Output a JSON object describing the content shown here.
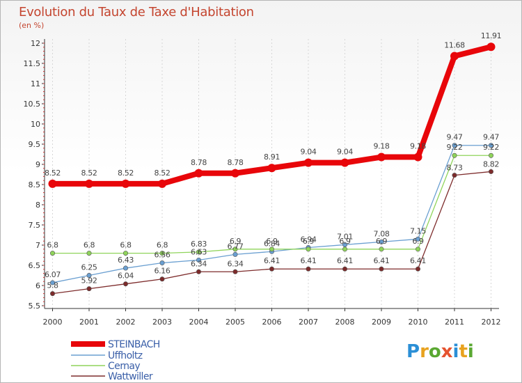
{
  "header": {
    "title": "Evolution du Taux de Taxe d'Habitation",
    "unit": "(en %)"
  },
  "logo": {
    "text": "Proxiti",
    "colors": [
      "#2b8fd6",
      "#e8a21f",
      "#5aa832",
      "#e5532f",
      "#2b8fd6",
      "#e8a21f",
      "#5aa832"
    ]
  },
  "chart_data": {
    "type": "line",
    "x": [
      "2000",
      "2001",
      "2002",
      "2003",
      "2004",
      "2005",
      "2006",
      "2007",
      "2008",
      "2009",
      "2010",
      "2011",
      "2012"
    ],
    "ylim": [
      5.5,
      12
    ],
    "yticks": [
      "5.5",
      "6",
      "6.5",
      "7",
      "7.5",
      "8",
      "8.5",
      "9",
      "9.5",
      "10",
      "10.5",
      "11",
      "11.5",
      "12"
    ],
    "grid": "vertical",
    "legend_position": "bottom-left",
    "series": [
      {
        "name": "STEINBACH",
        "color": "#e8060a",
        "values": [
          8.52,
          8.52,
          8.52,
          8.52,
          8.78,
          8.78,
          8.91,
          9.04,
          9.04,
          9.18,
          9.18,
          11.68,
          11.91
        ],
        "labels": [
          "8.52",
          "8.52",
          "8.52",
          "8.52",
          "8.78",
          "8.78",
          "8.91",
          "9.04",
          "9.04",
          "9.18",
          "9.18",
          "11.68",
          "11.91"
        ]
      },
      {
        "name": "Uffholtz",
        "color": "#6a9fd1",
        "values": [
          6.07,
          6.25,
          6.43,
          6.56,
          6.63,
          6.77,
          6.84,
          6.94,
          7.01,
          7.08,
          7.15,
          9.47,
          9.47
        ],
        "labels": [
          "6.07",
          "6.25",
          "6.43",
          "6.56",
          "6.63",
          "6.77",
          "6.84",
          "6.94",
          "7.01",
          "7.08",
          "7.15",
          "9.47",
          "9.47"
        ]
      },
      {
        "name": "Cernay",
        "color": "#8fd45a",
        "values": [
          6.8,
          6.8,
          6.8,
          6.8,
          6.83,
          6.9,
          6.9,
          6.9,
          6.9,
          6.9,
          6.9,
          9.22,
          9.22
        ],
        "labels": [
          "6.8",
          "6.8",
          "6.8",
          "6.8",
          "6.83",
          "6.9",
          "6.9",
          "6.9",
          "6.9",
          "6.9",
          "6.9",
          "9.22",
          "9.22"
        ]
      },
      {
        "name": "Wattwiller",
        "color": "#7d2b2b",
        "values": [
          5.8,
          5.92,
          6.04,
          6.16,
          6.34,
          6.34,
          6.41,
          6.41,
          6.41,
          6.41,
          6.41,
          8.73,
          8.82
        ],
        "labels": [
          "5.8",
          "5.92",
          "6.04",
          "6.16",
          "6.34",
          "6.34",
          "6.41",
          "6.41",
          "6.41",
          "6.41",
          "6.41",
          "8.73",
          "8.82"
        ]
      }
    ]
  }
}
